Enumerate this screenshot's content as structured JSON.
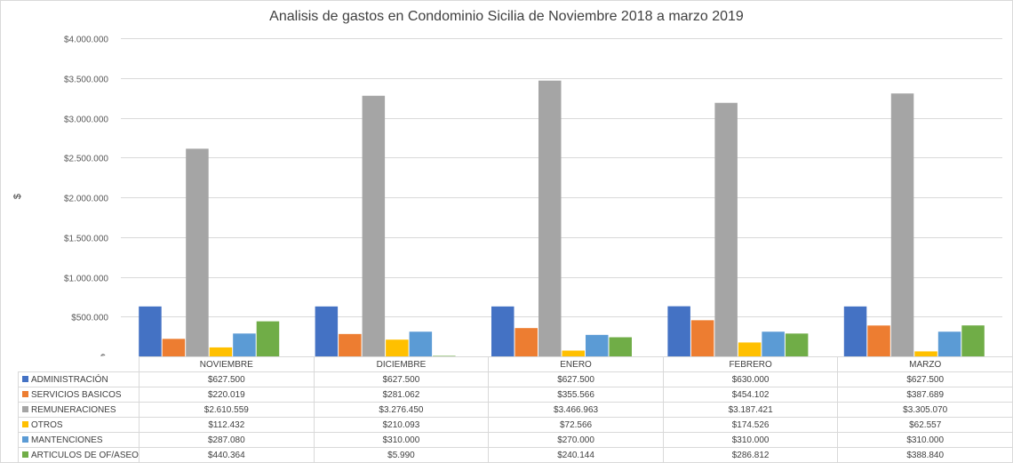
{
  "chart_data": {
    "type": "bar",
    "title": "Analisis de gastos en Condominio Sicilia de Noviembre 2018 a marzo 2019",
    "ylabel": "$",
    "xlabel": "",
    "ylim": [
      0,
      4000000
    ],
    "y_ticks": [
      0,
      500000,
      1000000,
      1500000,
      2000000,
      2500000,
      3000000,
      3500000,
      4000000
    ],
    "y_tick_labels": [
      "$-",
      "$500.000",
      "$1.000.000",
      "$1.500.000",
      "$2.000.000",
      "$2.500.000",
      "$3.000.000",
      "$3.500.000",
      "$4.000.000"
    ],
    "grid": true,
    "legend": "data table below chart",
    "categories": [
      "NOVIEMBRE",
      "DICIEMBRE",
      "ENERO",
      "FEBRERO",
      "MARZO"
    ],
    "series": [
      {
        "name": "ADMINISTRACIÓN",
        "color": "#4472c4",
        "values": [
          627500,
          627500,
          627500,
          630000,
          627500
        ],
        "labels": [
          "$627.500",
          "$627.500",
          "$627.500",
          "$630.000",
          "$627.500"
        ]
      },
      {
        "name": "SERVICIOS BASICOS",
        "color": "#ed7d31",
        "values": [
          220019,
          281062,
          355566,
          454102,
          387689
        ],
        "labels": [
          "$220.019",
          "$281.062",
          "$355.566",
          "$454.102",
          "$387.689"
        ]
      },
      {
        "name": "REMUNERACIONES",
        "color": "#a5a5a5",
        "values": [
          2610559,
          3276450,
          3466963,
          3187421,
          3305070
        ],
        "labels": [
          "$2.610.559",
          "$3.276.450",
          "$3.466.963",
          "$3.187.421",
          "$3.305.070"
        ]
      },
      {
        "name": "OTROS",
        "color": "#ffc000",
        "values": [
          112432,
          210093,
          72566,
          174526,
          62557
        ],
        "labels": [
          "$112.432",
          "$210.093",
          "$72.566",
          "$174.526",
          "$62.557"
        ]
      },
      {
        "name": "MANTENCIONES",
        "color": "#5b9bd5",
        "values": [
          287080,
          310000,
          270000,
          310000,
          310000
        ],
        "labels": [
          "$287.080",
          "$310.000",
          "$270.000",
          "$310.000",
          "$310.000"
        ]
      },
      {
        "name": "ARTICULOS DE OF/ASEO",
        "color": "#70ad47",
        "values": [
          440364,
          5990,
          240144,
          286812,
          388840
        ],
        "labels": [
          "$440.364",
          "$5.990",
          "$240.144",
          "$286.812",
          "$388.840"
        ]
      }
    ]
  }
}
